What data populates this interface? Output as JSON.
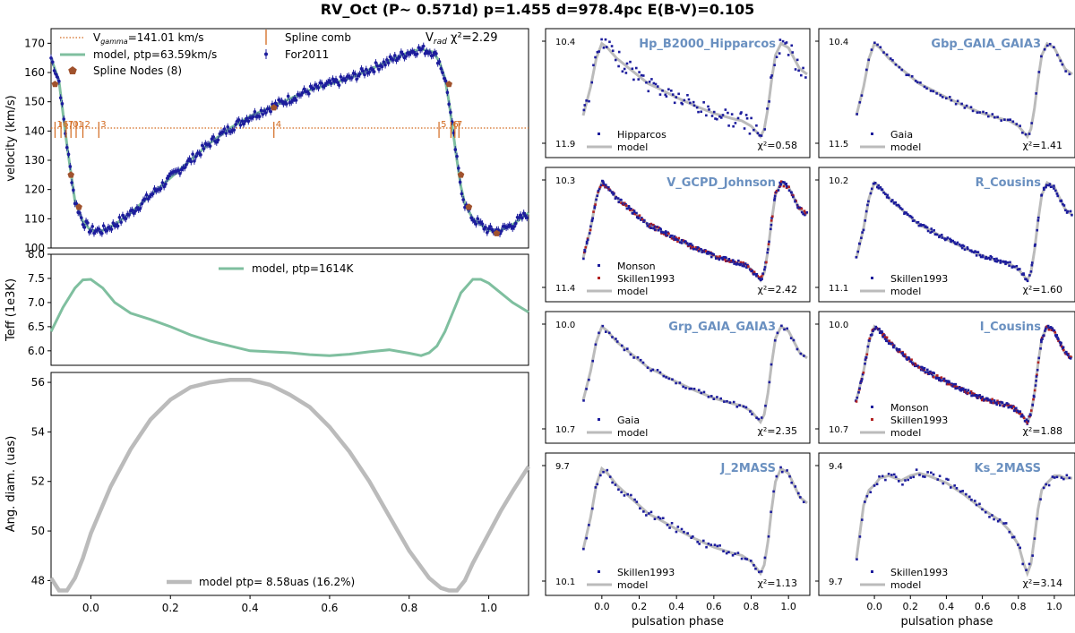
{
  "suptitle": "RV_Oct (P~ 0.571d) p=1.455 d=978.4pc E(B-V)=0.105",
  "colors": {
    "model_green": "#7fbf9f",
    "model_gray": "#bbbbbb",
    "data_blue": "#1c1c9c",
    "data_red": "#b22222",
    "comb_orange": "#d2691e",
    "node_brown": "#a0522d",
    "title_blue": "#6a90c0"
  },
  "chart_data": [
    {
      "id": "rv",
      "type": "scatter",
      "ylabel": "velocity (km/s)",
      "xlim": [
        -0.1,
        1.1
      ],
      "ylim": [
        100,
        175
      ],
      "yticks": [
        100,
        110,
        120,
        130,
        140,
        150,
        160,
        170
      ],
      "title_right": "V",
      "title_right_sub": "rad",
      "title_right_tail": " χ²=2.29",
      "gamma": 141.01,
      "legend": {
        "gamma_pre": "V",
        "gamma_sub": "gamma",
        "gamma_post": "=141.01 km/s",
        "model": "model, ptp=63.59km/s",
        "nodes": "Spline Nodes (8)",
        "comb": "Spline comb",
        "data": "For2011"
      },
      "model_curve": {
        "x": [
          -0.1,
          -0.08,
          -0.06,
          -0.04,
          -0.02,
          0.0,
          0.03,
          0.06,
          0.1,
          0.15,
          0.2,
          0.25,
          0.3,
          0.35,
          0.4,
          0.45,
          0.5,
          0.55,
          0.6,
          0.65,
          0.7,
          0.75,
          0.8,
          0.83,
          0.86,
          0.875,
          0.89,
          0.9,
          0.91,
          0.92,
          0.93,
          0.94,
          0.96,
          0.98,
          1.0,
          1.03,
          1.06,
          1.1
        ],
        "y": [
          165,
          157,
          135,
          116,
          109,
          106,
          106,
          108,
          112,
          118,
          124,
          130,
          136,
          141,
          145,
          148,
          151,
          154,
          156,
          158,
          161,
          164,
          167,
          168,
          167,
          164,
          158,
          150,
          140,
          130,
          121,
          115,
          110,
          108,
          106,
          106,
          108,
          112
        ]
      },
      "data_series": {
        "name": "For2011",
        "x_step": 0.004,
        "x_range": [
          -0.1,
          1.1
        ]
      },
      "nodes": {
        "x": [
          -0.09,
          -0.05,
          -0.03,
          0.46,
          0.9,
          0.93,
          0.95,
          1.02
        ],
        "y": [
          156,
          125,
          114,
          148,
          156,
          125,
          114,
          105
        ]
      },
      "comb": {
        "x": [
          -0.09,
          -0.075,
          -0.062,
          -0.05,
          -0.037,
          -0.02,
          0.02,
          0.46,
          0.875,
          0.905,
          0.915,
          0.925
        ],
        "labels": [
          "1",
          "6",
          "7",
          "0",
          "1",
          "2",
          "3",
          "4",
          "5",
          "6",
          "7",
          ""
        ]
      }
    },
    {
      "id": "teff",
      "type": "line",
      "ylabel": "Teff (1e3K)",
      "xlim": [
        -0.1,
        1.1
      ],
      "ylim": [
        5.7,
        8.0
      ],
      "yticks": [
        6.0,
        6.5,
        7.0,
        7.5,
        8.0
      ],
      "legend": {
        "model": "model, ptp=1614K"
      },
      "model_curve": {
        "x": [
          -0.1,
          -0.07,
          -0.04,
          -0.02,
          0.0,
          0.03,
          0.06,
          0.1,
          0.15,
          0.2,
          0.25,
          0.3,
          0.35,
          0.4,
          0.45,
          0.5,
          0.55,
          0.6,
          0.65,
          0.7,
          0.75,
          0.8,
          0.83,
          0.85,
          0.87,
          0.89,
          0.91,
          0.93,
          0.96,
          0.98,
          1.0,
          1.03,
          1.06,
          1.1
        ],
        "y": [
          6.4,
          6.9,
          7.3,
          7.47,
          7.48,
          7.3,
          7.0,
          6.78,
          6.65,
          6.5,
          6.33,
          6.2,
          6.1,
          6.0,
          5.98,
          5.96,
          5.92,
          5.9,
          5.93,
          5.98,
          6.02,
          5.95,
          5.9,
          5.96,
          6.1,
          6.4,
          6.8,
          7.2,
          7.48,
          7.48,
          7.4,
          7.2,
          7.0,
          6.8
        ]
      }
    },
    {
      "id": "diam",
      "type": "line",
      "ylabel": "Ang. diam. (uas)",
      "xlim": [
        -0.1,
        1.1
      ],
      "ylim": [
        47.4,
        56.4
      ],
      "yticks": [
        48,
        50,
        52,
        54,
        56
      ],
      "xticks": [
        0.0,
        0.2,
        0.4,
        0.6,
        0.8,
        1.0
      ],
      "xticklabels": [
        "0.0",
        "0.2",
        "0.4",
        "0.6",
        "0.8",
        "1.0"
      ],
      "legend": {
        "model": "model ptp= 8.58uas (16.2%)"
      },
      "model_curve": {
        "x": [
          -0.1,
          -0.08,
          -0.06,
          -0.04,
          -0.02,
          0.0,
          0.05,
          0.1,
          0.15,
          0.2,
          0.25,
          0.3,
          0.35,
          0.4,
          0.45,
          0.5,
          0.55,
          0.6,
          0.65,
          0.7,
          0.75,
          0.8,
          0.85,
          0.88,
          0.9,
          0.92,
          0.94,
          0.96,
          0.98,
          1.0,
          1.03,
          1.06,
          1.1
        ],
        "y": [
          48.1,
          47.6,
          47.6,
          48.1,
          48.9,
          49.9,
          51.8,
          53.3,
          54.5,
          55.3,
          55.8,
          56.0,
          56.1,
          56.1,
          55.9,
          55.5,
          55.0,
          54.2,
          53.2,
          52.0,
          50.6,
          49.2,
          48.1,
          47.7,
          47.6,
          47.6,
          48.0,
          48.7,
          49.3,
          49.9,
          50.8,
          51.6,
          52.6
        ]
      }
    },
    {
      "id": "hp",
      "type": "scatter",
      "title": "Hp_B2000_Hipparcos",
      "yticks": [
        "10.4",
        "11.9"
      ],
      "legend": [
        {
          "kind": "dot",
          "label": "Hipparcos"
        },
        {
          "kind": "line",
          "label": "model"
        }
      ],
      "chi2": "χ²=0.58"
    },
    {
      "id": "gbp",
      "type": "scatter",
      "title": "Gbp_GAIA_GAIA3",
      "yticks": [
        "10.4",
        "11.5"
      ],
      "legend": [
        {
          "kind": "dot",
          "label": "Gaia"
        },
        {
          "kind": "line",
          "label": "model"
        }
      ],
      "chi2": "χ²=1.41"
    },
    {
      "id": "v",
      "type": "scatter",
      "title": "V_GCPD_Johnson",
      "yticks": [
        "10.3",
        "11.4"
      ],
      "legend": [
        {
          "kind": "dot",
          "label": "Monson"
        },
        {
          "kind": "reddot",
          "label": "Skillen1993"
        },
        {
          "kind": "line",
          "label": "model"
        }
      ],
      "chi2": "χ²=2.42"
    },
    {
      "id": "r",
      "type": "scatter",
      "title": "R_Cousins",
      "yticks": [
        "10.2",
        "11.1"
      ],
      "legend": [
        {
          "kind": "dot",
          "label": "Skillen1993"
        },
        {
          "kind": "line",
          "label": "model"
        }
      ],
      "chi2": "χ²=1.60"
    },
    {
      "id": "grp",
      "type": "scatter",
      "title": "Grp_GAIA_GAIA3",
      "yticks": [
        "10.0",
        "10.7"
      ],
      "legend": [
        {
          "kind": "dot",
          "label": "Gaia"
        },
        {
          "kind": "line",
          "label": "model"
        }
      ],
      "chi2": "χ²=2.35"
    },
    {
      "id": "i",
      "type": "scatter",
      "title": "I_Cousins",
      "yticks": [
        "10.0",
        "10.7"
      ],
      "legend": [
        {
          "kind": "dot",
          "label": "Monson"
        },
        {
          "kind": "reddot",
          "label": "Skillen1993"
        },
        {
          "kind": "line",
          "label": "model"
        }
      ],
      "chi2": "χ²=1.88"
    },
    {
      "id": "j",
      "type": "scatter",
      "title": "J_2MASS",
      "yticks": [
        "9.7",
        "10.1"
      ],
      "legend": [
        {
          "kind": "dot",
          "label": "Skillen1993"
        },
        {
          "kind": "line",
          "label": "model"
        }
      ],
      "chi2": "χ²=1.13",
      "xlabel": "pulsation phase",
      "xticks": [
        "0.0",
        "0.2",
        "0.4",
        "0.6",
        "0.8",
        "1.0"
      ]
    },
    {
      "id": "ks",
      "type": "scatter",
      "title": "Ks_2MASS",
      "yticks": [
        "9.4",
        "9.7"
      ],
      "legend": [
        {
          "kind": "dot",
          "label": "Skillen1993"
        },
        {
          "kind": "line",
          "label": "model"
        }
      ],
      "chi2": "χ²=3.14",
      "xlabel": "pulsation phase",
      "xticks": [
        "0.0",
        "0.2",
        "0.4",
        "0.6",
        "0.8",
        "1.0"
      ]
    }
  ]
}
